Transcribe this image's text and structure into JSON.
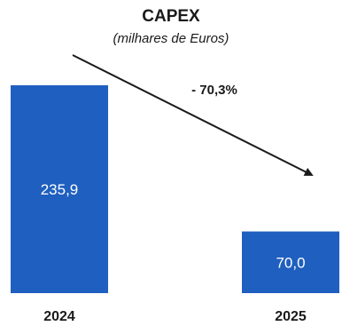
{
  "chart_data": {
    "type": "bar",
    "title": "CAPEX",
    "subtitle": "(milhares de Euros)",
    "categories": [
      "2024",
      "2025"
    ],
    "values": [
      235.9,
      70.0
    ],
    "value_labels": [
      "235,9",
      "70,0"
    ],
    "annotation": "- 70,3%",
    "ylim": [
      0,
      235.9
    ],
    "grid": false,
    "bar_color": "#1f5fbf",
    "label_color": "#ffffff",
    "text_color": "#1a1a1a"
  }
}
